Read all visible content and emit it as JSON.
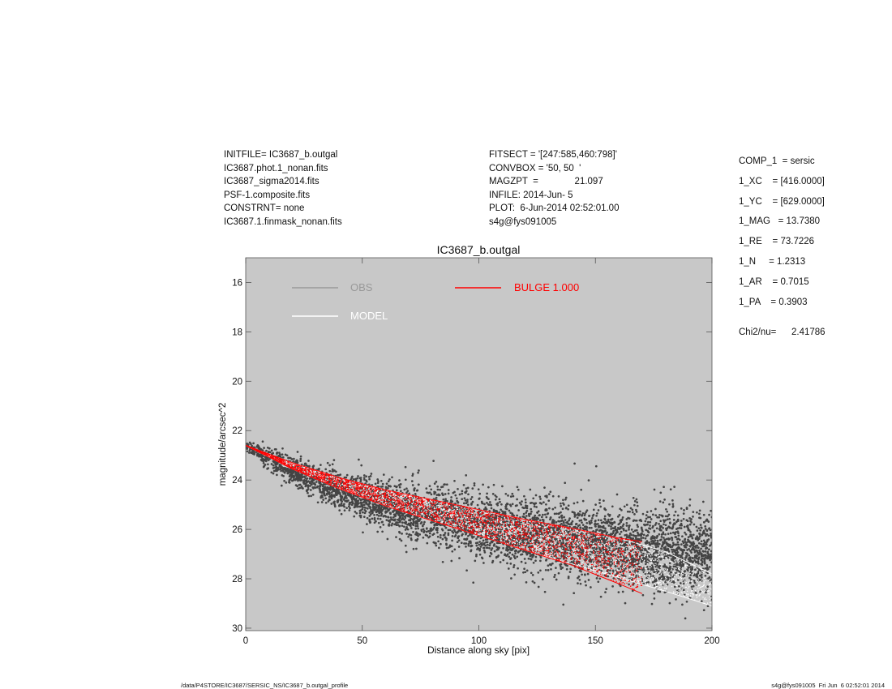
{
  "header": {
    "left_lines": [
      "INITFILE= IC3687_b.outgal",
      "IC3687.phot.1_nonan.fits",
      "IC3687_sigma2014.fits",
      "PSF-1.composite.fits",
      "CONSTRNT= none",
      "IC3687.1.finmask_nonan.fits"
    ],
    "middle_lines": [
      "FITSECT = '[247:585,460:798]'",
      "CONVBOX = '50, 50  '",
      "MAGZPT  =              21.097",
      "INFILE: 2014-Jun- 5",
      "PLOT:  6-Jun-2014 02:52:01.00",
      "s4g@fys091005"
    ]
  },
  "params": {
    "lines": [
      "COMP_1  = sersic",
      "1_XC    = [416.0000]",
      "1_YC    = [629.0000]",
      "1_MAG   = 13.7380",
      "1_RE    = 73.7226",
      "1_N     = 1.2313",
      "1_AR    = 0.7015",
      "1_PA    = 0.3903"
    ],
    "chi2_label": "Chi2/nu=",
    "chi2_value": "2.41786"
  },
  "footer": {
    "left": "/data/P4STORE/IC3687/SERSIC_NS/IC3687_b.outgal_profile",
    "right": "s4g@fys091005  Fri Jun  6 02:52:01 2014"
  },
  "chart_data": {
    "type": "scatter",
    "title": "IC3687_b.outgal",
    "xlabel": "Distance along sky [pix]",
    "ylabel": "magnitude/arcsec^2",
    "xlim": [
      0,
      200
    ],
    "ylim": [
      30,
      15
    ],
    "y_inverted": true,
    "xticks": [
      0,
      50,
      100,
      150,
      200
    ],
    "yticks": [
      16,
      18,
      20,
      22,
      24,
      26,
      28,
      30
    ],
    "grid": false,
    "plot_background": "#c8c8c8",
    "legend": {
      "placement": "top",
      "entries": [
        {
          "label": "OBS",
          "color": "#999999"
        },
        {
          "label": "MODEL",
          "color": "#ffffff"
        },
        {
          "label": "BULGE  1.000",
          "color": "#ff0000"
        }
      ]
    },
    "series": [
      {
        "name": "OBS",
        "kind": "scatter",
        "color": "#444444",
        "x": [
          0,
          10,
          20,
          30,
          40,
          50,
          60,
          70,
          80,
          90,
          100,
          110,
          120,
          130,
          140,
          150,
          160,
          170,
          180,
          190,
          200
        ],
        "y": [
          22.6,
          23.1,
          23.6,
          24.0,
          24.4,
          24.7,
          25.0,
          25.25,
          25.45,
          25.65,
          25.85,
          26.0,
          26.15,
          26.3,
          26.45,
          26.55,
          26.65,
          26.75,
          26.85,
          26.95,
          27.0
        ],
        "spread": [
          0.2,
          0.4,
          0.5,
          0.6,
          0.7,
          0.8,
          0.9,
          1.0,
          1.05,
          1.1,
          1.15,
          1.2,
          1.25,
          1.3,
          1.35,
          1.4,
          1.4,
          1.45,
          1.45,
          1.5,
          1.5
        ]
      },
      {
        "name": "MODEL",
        "kind": "band",
        "color": "#ffffff",
        "x": [
          0,
          20,
          40,
          60,
          80,
          100,
          120,
          140,
          160,
          180,
          200
        ],
        "y_upper": [
          22.6,
          23.3,
          23.9,
          24.4,
          24.8,
          25.2,
          25.6,
          25.95,
          26.35,
          26.9,
          27.8
        ],
        "y_lower": [
          22.6,
          23.55,
          24.35,
          25.05,
          25.65,
          26.25,
          26.85,
          27.4,
          27.95,
          28.5,
          29.1
        ]
      },
      {
        "name": "BULGE  1.000",
        "kind": "band",
        "color": "#ff0000",
        "x": [
          0,
          20,
          40,
          60,
          80,
          100,
          120,
          140,
          160,
          170
        ],
        "y_upper": [
          22.6,
          23.3,
          23.9,
          24.4,
          24.8,
          25.2,
          25.6,
          25.95,
          26.35,
          26.5
        ],
        "y_lower": [
          22.6,
          23.55,
          24.35,
          25.05,
          25.65,
          26.25,
          26.85,
          27.45,
          28.2,
          28.6
        ]
      }
    ]
  }
}
